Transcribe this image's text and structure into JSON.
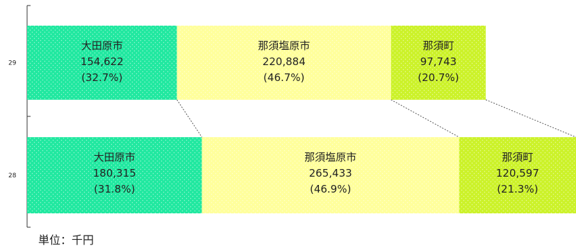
{
  "chart_data": {
    "type": "bar",
    "orientation": "horizontal",
    "stacked": true,
    "categories": [
      "29",
      "28"
    ],
    "series": [
      {
        "name": "大田原市",
        "values": [
          154622,
          180315
        ],
        "labels": [
          "154,622",
          "180,315"
        ],
        "percents": [
          "(32.7%)",
          "(31.8%)"
        ],
        "color": "#21e8a0"
      },
      {
        "name": "那須塩原市",
        "values": [
          220884,
          265433
        ],
        "labels": [
          "220,884",
          "265,433"
        ],
        "percents": [
          "(46.7%)",
          "(46.9%)"
        ],
        "color": "#ffff9c"
      },
      {
        "name": "那須町",
        "values": [
          97743,
          120597
        ],
        "labels": [
          "97,743",
          "120,597"
        ],
        "percents": [
          "(20.7%)",
          "(21.3%)"
        ],
        "color": "#ccf22a"
      }
    ],
    "xlim": [
      0,
      566345
    ],
    "grid": false,
    "legend": "none",
    "series_lines": true
  },
  "unit_label": "単位：千円"
}
